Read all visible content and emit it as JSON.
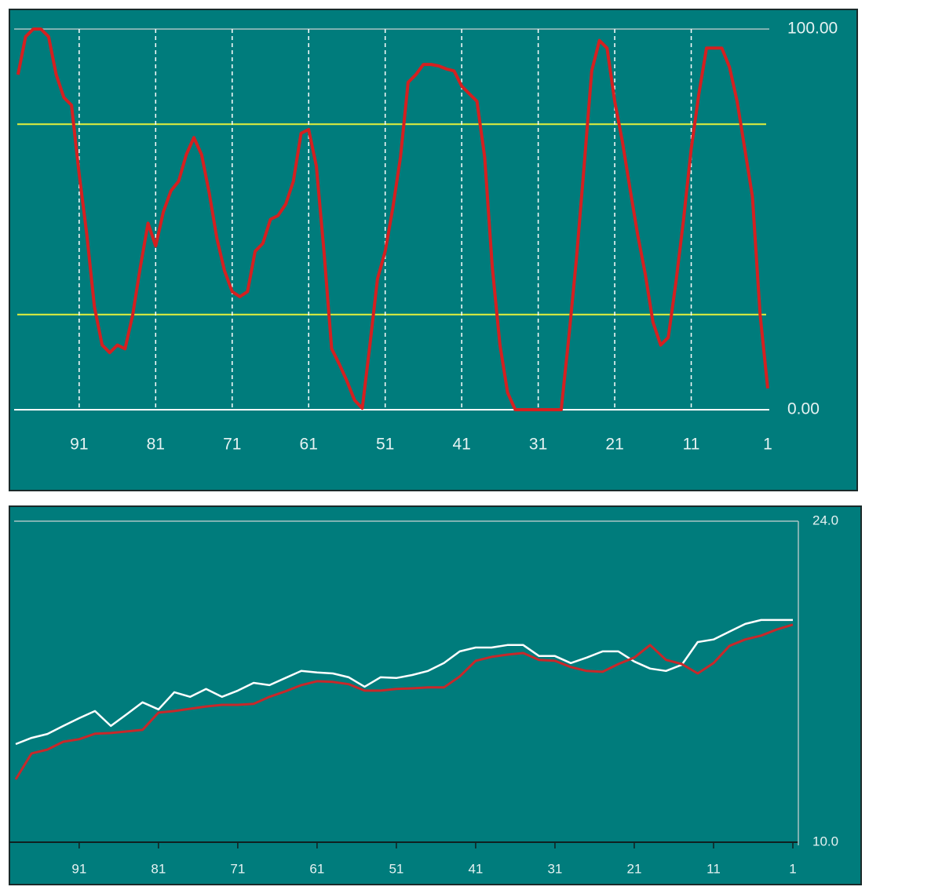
{
  "chart_data": [
    {
      "type": "line",
      "x": [
        99,
        98,
        97,
        96,
        95,
        94,
        93,
        92,
        91,
        90,
        89,
        88,
        87,
        86,
        85,
        84,
        83,
        82,
        81,
        80,
        79,
        78,
        77,
        76,
        75,
        74,
        73,
        72,
        71,
        70,
        69,
        68,
        67,
        66,
        65,
        64,
        63,
        62,
        61,
        60,
        59,
        58,
        57,
        56,
        55,
        54,
        53,
        52,
        51,
        50,
        49,
        48,
        47,
        46,
        45,
        44,
        43,
        42,
        41,
        40,
        39,
        38,
        37,
        36,
        35,
        34,
        33,
        32,
        31,
        30,
        29,
        28,
        27,
        26,
        25,
        24,
        23,
        22,
        21,
        20,
        19,
        18,
        17,
        16,
        15,
        14,
        13,
        12,
        11,
        10,
        9,
        8,
        7,
        6,
        5,
        4,
        3,
        2,
        1
      ],
      "series": [
        {
          "color": "#d42020",
          "values": [
            88,
            98,
            100,
            100,
            98,
            88,
            82,
            80,
            62,
            46,
            27,
            17,
            15,
            17,
            16,
            25,
            37.5,
            49,
            43,
            52,
            57.5,
            60,
            67,
            71.5,
            67,
            57,
            45,
            36.5,
            31,
            29.7,
            31,
            41.6,
            43.7,
            50,
            51,
            54,
            60,
            72.6,
            73.6,
            64,
            41.6,
            16,
            12,
            7.5,
            2.5,
            0.4,
            17,
            34.4,
            41.6,
            53,
            66.4,
            86,
            88,
            90.7,
            90.7,
            90.3,
            89.5,
            89,
            85,
            83,
            81,
            66.4,
            37.5,
            17,
            4.5,
            0,
            0,
            0,
            0,
            0,
            0,
            0,
            19,
            39.6,
            64,
            89,
            97,
            95,
            81,
            70.5,
            58,
            46,
            35.5,
            23,
            17,
            19,
            33.4,
            50,
            68.5,
            83,
            95,
            95,
            95,
            90,
            81,
            68.5,
            56,
            25,
            5.6
          ]
        }
      ],
      "xlim": [
        99.5,
        1
      ],
      "xticks": [
        91,
        81,
        71,
        61,
        51,
        41,
        31,
        21,
        11,
        1
      ],
      "ylim": [
        0,
        100
      ],
      "yticks": [
        {
          "value": 100,
          "label": "100.00"
        },
        {
          "value": 0,
          "label": "0.00"
        }
      ],
      "hlines": [
        75,
        25
      ],
      "hline_color": "#e4f03c",
      "xgrid": true
    },
    {
      "type": "line",
      "x": [
        99,
        97,
        95,
        93,
        91,
        89,
        87,
        85,
        83,
        81,
        79,
        77,
        75,
        73,
        71,
        69,
        67,
        65,
        63,
        61,
        59,
        57,
        55,
        53,
        51,
        49,
        47,
        45,
        43,
        41,
        39,
        37,
        35,
        33,
        31,
        29,
        27,
        25,
        23,
        21,
        19,
        17,
        15,
        13,
        11,
        9,
        7,
        5,
        3,
        1
      ],
      "series": [
        {
          "color": "#ffffff",
          "values": [
            14.28,
            14.55,
            14.72,
            15.07,
            15.41,
            15.72,
            15.07,
            15.58,
            16.1,
            15.79,
            16.54,
            16.34,
            16.68,
            16.34,
            16.61,
            16.95,
            16.85,
            17.16,
            17.47,
            17.4,
            17.36,
            17.19,
            16.78,
            17.19,
            17.16,
            17.29,
            17.47,
            17.81,
            18.32,
            18.49,
            18.49,
            18.6,
            18.6,
            18.12,
            18.12,
            17.81,
            18.05,
            18.32,
            18.32,
            17.88,
            17.57,
            17.47,
            17.74,
            18.73,
            18.84,
            19.18,
            19.52,
            19.69,
            19.69,
            19.69
          ]
        },
        {
          "color": "#c8282a",
          "values": [
            12.74,
            13.87,
            14.04,
            14.38,
            14.49,
            14.73,
            14.76,
            14.83,
            14.9,
            15.65,
            15.72,
            15.82,
            15.92,
            15.99,
            15.99,
            16.03,
            16.34,
            16.58,
            16.85,
            17.02,
            16.99,
            16.89,
            16.61,
            16.61,
            16.68,
            16.71,
            16.75,
            16.75,
            17.23,
            17.91,
            18.08,
            18.18,
            18.25,
            17.95,
            17.91,
            17.64,
            17.47,
            17.43,
            17.77,
            18.05,
            18.6,
            17.95,
            17.77,
            17.36,
            17.81,
            18.56,
            18.84,
            19.01,
            19.28,
            19.49
          ]
        }
      ],
      "xlim": [
        99.2,
        1
      ],
      "xticks": [
        91,
        81,
        71,
        61,
        51,
        41,
        31,
        21,
        11,
        1
      ],
      "ylim": [
        10,
        24
      ],
      "yticks": [
        {
          "value": 24,
          "label": "24.0"
        },
        {
          "value": 10,
          "label": "10.0"
        }
      ],
      "xgrid": false
    }
  ]
}
